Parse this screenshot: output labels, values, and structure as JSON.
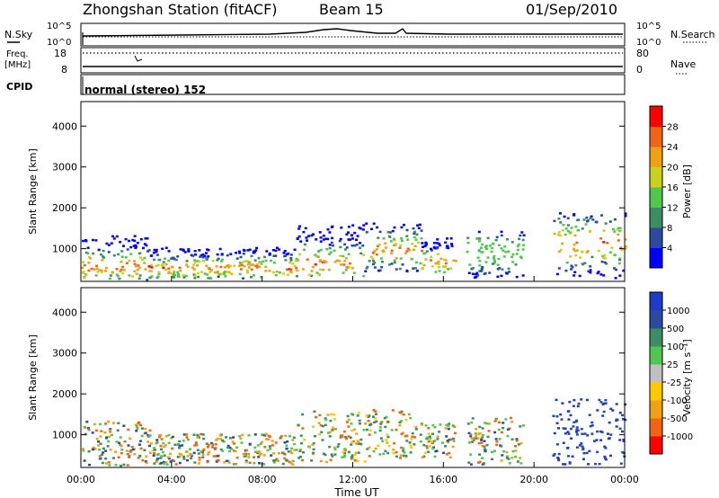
{
  "header": {
    "station": "Zhongshan Station (fitACF)",
    "beam": "Beam 15",
    "date": "01/Sep/2010"
  },
  "strips": {
    "nsky_label": "N.Sky",
    "nsearch_label": "N.Search",
    "nsky_ticks": [
      "10^5",
      "10^0"
    ],
    "nsearch_ticks": [
      "10^5",
      "10^0"
    ],
    "freq_label": "Freq.",
    "freq_unit": "[MHz]",
    "freq_ticks": [
      "18",
      "8"
    ],
    "nave_label": "Nave",
    "nave_ticks": [
      "80",
      "0"
    ],
    "cpid_label": "CPID",
    "cpid_value": "normal (stereo) 152"
  },
  "chart_data": [
    {
      "type": "heatmap",
      "name": "power",
      "ylabel": "Slant Range [km]",
      "yticks": [
        "4000",
        "3000",
        "2000",
        "1000"
      ],
      "ylim": [
        200,
        4600
      ],
      "xlim": [
        0,
        24
      ],
      "colorbar": {
        "label": "Power [dB]",
        "ticks": [
          "28",
          "24",
          "20",
          "16",
          "12",
          "8",
          "4"
        ],
        "colors": [
          "#0000ff",
          "#2a4ba0",
          "#3c8c64",
          "#50c850",
          "#c8d21e",
          "#f0a014",
          "#f06414",
          "#ff0000"
        ]
      },
      "segments": [
        {
          "t0": 0.0,
          "t1": 3.0,
          "r0": 250,
          "r1": 1350,
          "peak": 600
        },
        {
          "t0": 3.0,
          "t1": 9.5,
          "r0": 300,
          "r1": 1050,
          "peak": 550
        },
        {
          "t0": 9.5,
          "t1": 12.5,
          "r0": 350,
          "r1": 1600,
          "peak": 650
        },
        {
          "t0": 12.5,
          "t1": 15.0,
          "r0": 450,
          "r1": 1650,
          "peak": 1000
        },
        {
          "t0": 15.0,
          "t1": 16.5,
          "r0": 450,
          "r1": 1300,
          "peak": 700
        },
        {
          "t0": 17.0,
          "t1": 19.5,
          "r0": 300,
          "r1": 1450,
          "peak": 900
        },
        {
          "t0": 20.8,
          "t1": 24.0,
          "r0": 300,
          "r1": 1900,
          "peak": 1150
        }
      ]
    },
    {
      "type": "heatmap",
      "name": "velocity",
      "ylabel": "Slant Range [km]",
      "yticks": [
        "4000",
        "3000",
        "2000",
        "1000"
      ],
      "ylim": [
        200,
        4600
      ],
      "xlim": [
        0,
        24
      ],
      "colorbar": {
        "label": "Velocity [m s⁻¹]",
        "ticks": [
          "1000",
          "500",
          "100",
          "25",
          "-25",
          "-100",
          "-500",
          "-1000"
        ],
        "colors": [
          "#ff0000",
          "#f06414",
          "#f0a014",
          "#ffc800",
          "#c0c0c0",
          "#50c850",
          "#3c8c64",
          "#2a4ba0",
          "#1e3cc8"
        ]
      },
      "segments": [
        {
          "t0": 0.0,
          "t1": 3.0,
          "r0": 250,
          "r1": 1350,
          "peak": 600
        },
        {
          "t0": 3.0,
          "t1": 9.5,
          "r0": 300,
          "r1": 1050,
          "peak": 550
        },
        {
          "t0": 9.5,
          "t1": 12.5,
          "r0": 350,
          "r1": 1600,
          "peak": 650
        },
        {
          "t0": 12.5,
          "t1": 15.0,
          "r0": 450,
          "r1": 1650,
          "peak": 1000
        },
        {
          "t0": 15.0,
          "t1": 16.5,
          "r0": 450,
          "r1": 1300,
          "peak": 700
        },
        {
          "t0": 17.0,
          "t1": 19.5,
          "r0": 300,
          "r1": 1450,
          "peak": 900
        },
        {
          "t0": 20.8,
          "t1": 24.0,
          "r0": 300,
          "r1": 1900,
          "peak": 1150
        }
      ]
    }
  ],
  "xaxis": {
    "label": "Time UT",
    "ticks": [
      "00:00",
      "04:00",
      "08:00",
      "12:00",
      "16:00",
      "20:00",
      "00:00"
    ]
  }
}
